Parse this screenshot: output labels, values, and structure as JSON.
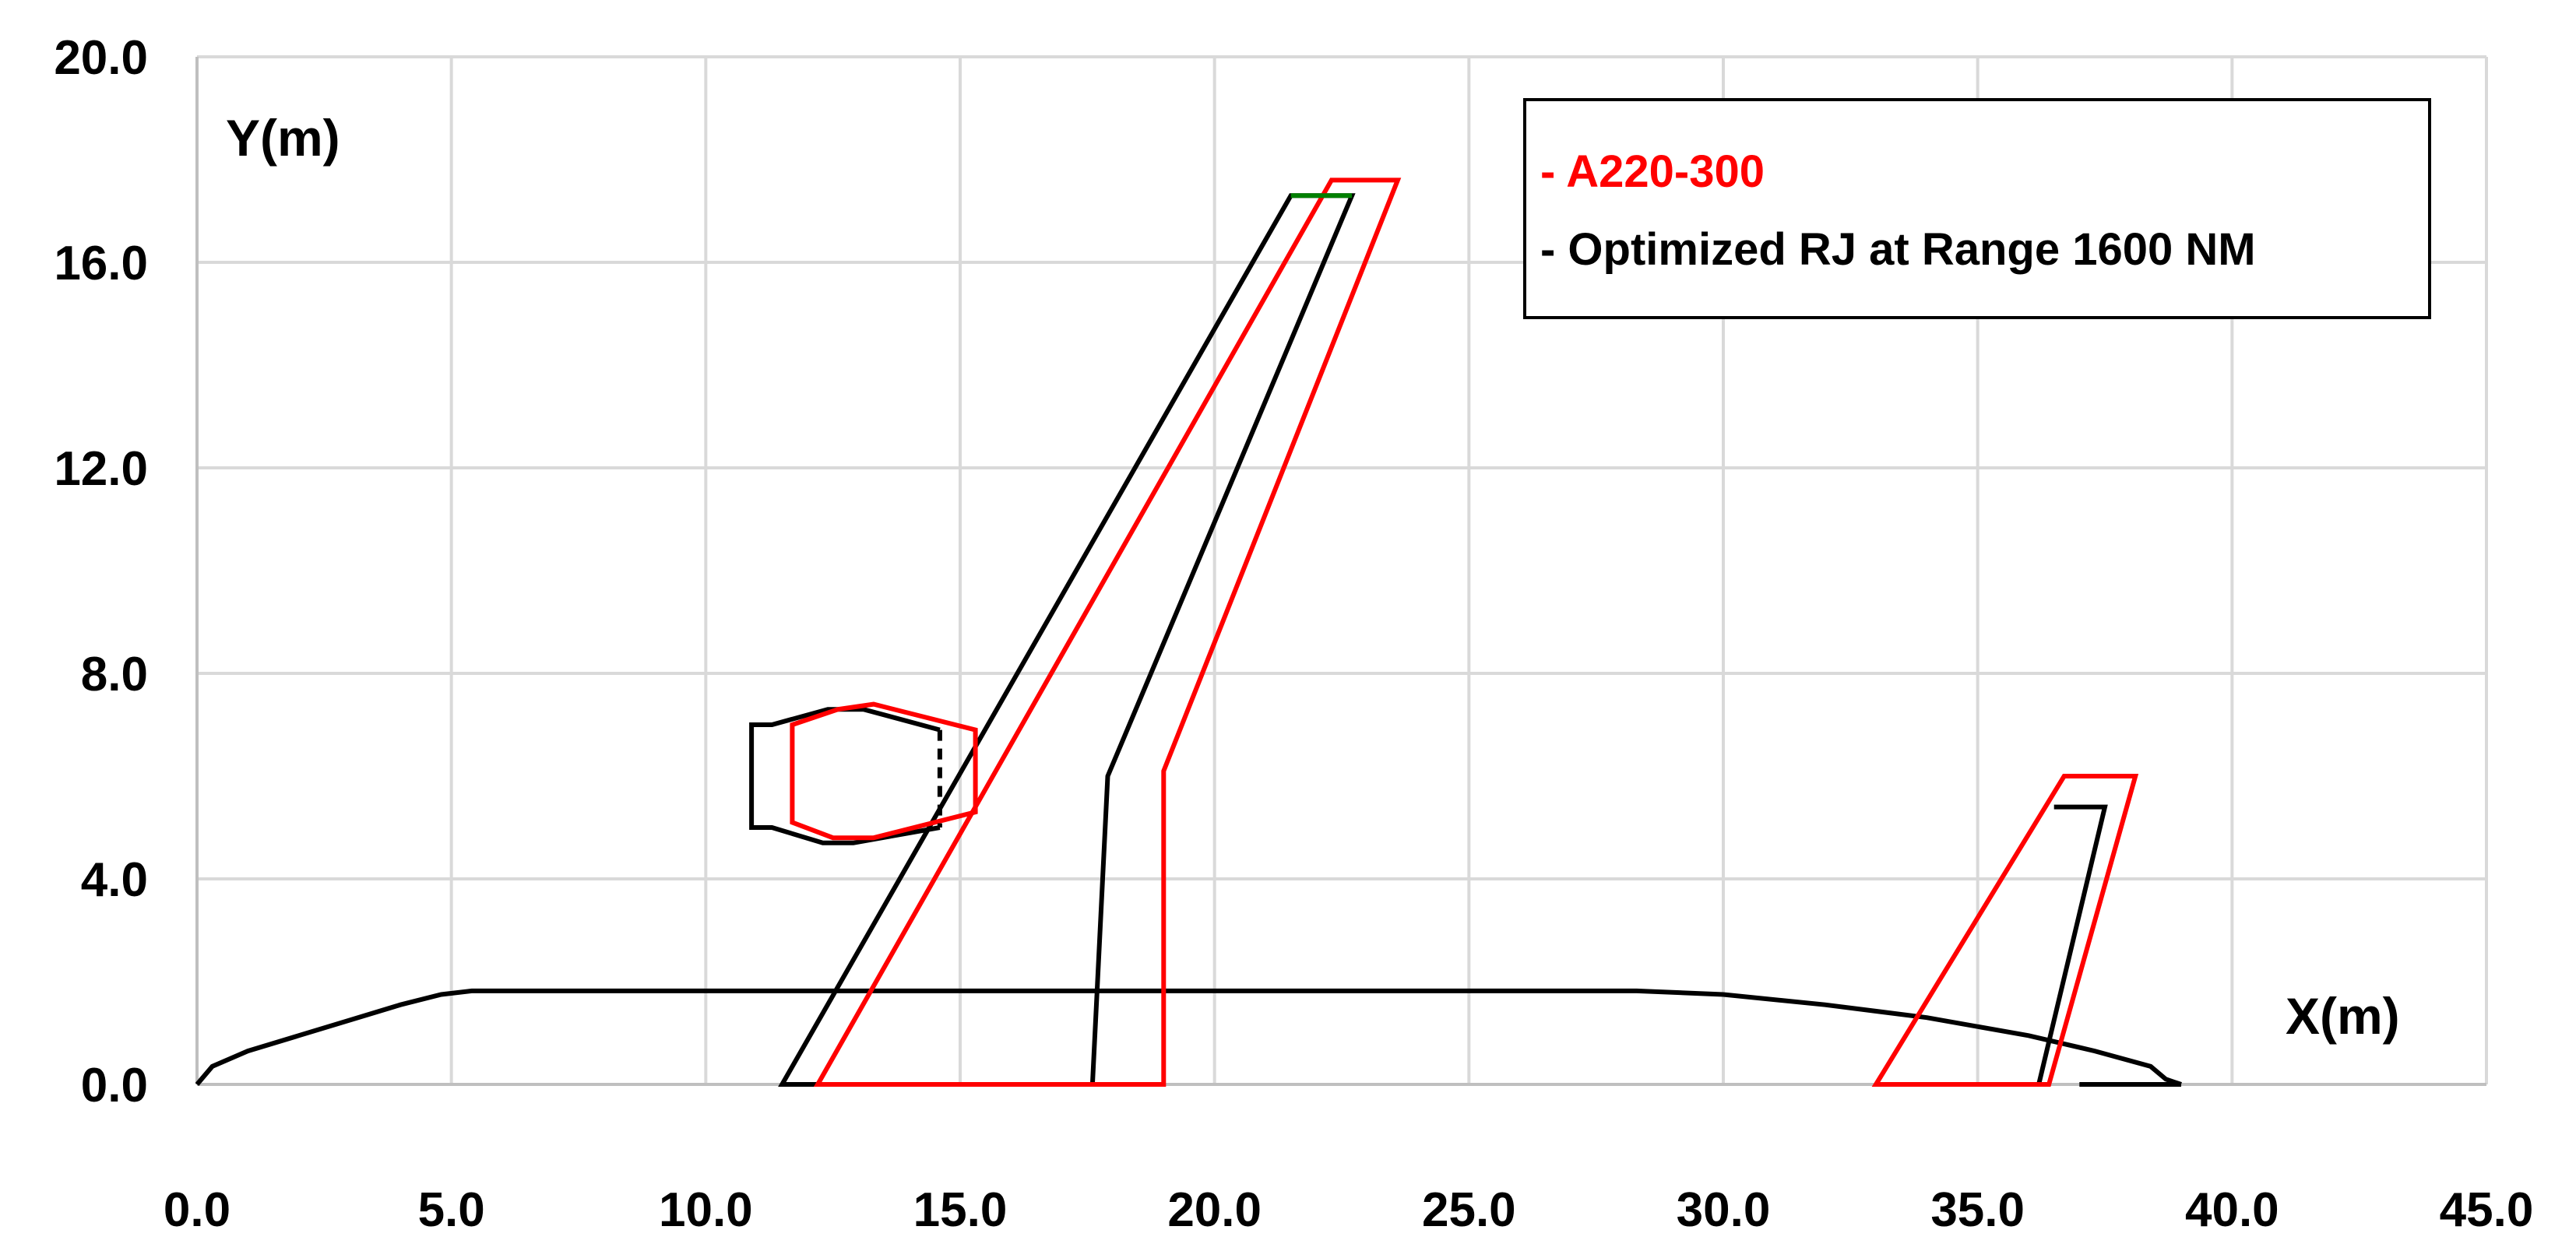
{
  "chart_data": {
    "type": "line",
    "title": "",
    "xlabel": "X(m)",
    "ylabel": "Y(m)",
    "xlim": [
      0,
      45
    ],
    "ylim": [
      0,
      20
    ],
    "x_ticks": [
      0,
      5,
      10,
      15,
      20,
      25,
      30,
      35,
      40,
      45
    ],
    "y_ticks": [
      0,
      4,
      8,
      12,
      16,
      20
    ],
    "x_tick_labels": [
      "0.0",
      "5.0",
      "10.0",
      "15.0",
      "20.0",
      "25.0",
      "30.0",
      "35.0",
      "40.0",
      "45.0"
    ],
    "y_tick_labels": [
      "0.0",
      "4.0",
      "8.0",
      "12.0",
      "16.0",
      "20.0"
    ],
    "grid": true,
    "legend_position": "top-right",
    "legend": [
      {
        "label": "- A220-300",
        "color": "#ff0000"
      },
      {
        "label": "- Optimized RJ at Range 1600 NM",
        "color": "#000000"
      }
    ],
    "series": [
      {
        "name": "fuselage",
        "color": "#000000",
        "closed": false,
        "points": [
          [
            0,
            0
          ],
          [
            0.3,
            0.35
          ],
          [
            1,
            0.65
          ],
          [
            2,
            0.95
          ],
          [
            3,
            1.25
          ],
          [
            4,
            1.55
          ],
          [
            4.8,
            1.75
          ],
          [
            5.4,
            1.82
          ],
          [
            28.3,
            1.82
          ],
          [
            30,
            1.75
          ],
          [
            32,
            1.55
          ],
          [
            34,
            1.3
          ],
          [
            36,
            0.95
          ],
          [
            37.3,
            0.65
          ],
          [
            38.4,
            0.35
          ],
          [
            38.7,
            0.1
          ],
          [
            39,
            0
          ]
        ]
      },
      {
        "name": "tail-base",
        "color": "#000000",
        "closed": false,
        "points": [
          [
            37.0,
            0
          ],
          [
            39.0,
            0
          ]
        ]
      },
      {
        "name": "wing-optimized",
        "color": "#000000",
        "closed": true,
        "points": [
          [
            11.5,
            0
          ],
          [
            21.5,
            17.3
          ],
          [
            22.7,
            17.3
          ],
          [
            17.9,
            6.0
          ],
          [
            17.6,
            0
          ]
        ]
      },
      {
        "name": "wing-a220",
        "color": "#ff0000",
        "closed": true,
        "points": [
          [
            12.2,
            0
          ],
          [
            22.3,
            17.6
          ],
          [
            23.6,
            17.6
          ],
          [
            19.0,
            6.1
          ],
          [
            19.0,
            0
          ]
        ]
      },
      {
        "name": "wing-tip-chord",
        "color": "#008000",
        "closed": false,
        "points": [
          [
            21.5,
            17.3
          ],
          [
            22.7,
            17.3
          ]
        ]
      },
      {
        "name": "nacelle-optimized",
        "color": "#000000",
        "closed": false,
        "points": [
          [
            14.6,
            6.9
          ],
          [
            13.1,
            7.3
          ],
          [
            12.4,
            7.3
          ],
          [
            11.3,
            7.0
          ],
          [
            10.9,
            7.0
          ],
          [
            10.9,
            5.0
          ],
          [
            11.3,
            5.0
          ],
          [
            12.3,
            4.7
          ],
          [
            12.9,
            4.7
          ],
          [
            14.6,
            5.0
          ]
        ]
      },
      {
        "name": "nacelle-a220",
        "color": "#ff0000",
        "closed": true,
        "points": [
          [
            11.7,
            7.0
          ],
          [
            12.6,
            7.3
          ],
          [
            13.3,
            7.4
          ],
          [
            15.3,
            6.9
          ],
          [
            15.3,
            5.3
          ],
          [
            13.3,
            4.8
          ],
          [
            12.5,
            4.8
          ],
          [
            11.7,
            5.1
          ]
        ]
      },
      {
        "name": "htail-optimized",
        "color": "#000000",
        "closed": false,
        "points": [
          [
            36.2,
            0
          ],
          [
            37.5,
            5.4
          ],
          [
            36.5,
            5.4
          ]
        ]
      },
      {
        "name": "htail-a220",
        "color": "#ff0000",
        "closed": true,
        "points": [
          [
            33.0,
            0
          ],
          [
            36.7,
            6.0
          ],
          [
            38.1,
            6.0
          ],
          [
            36.4,
            0
          ]
        ]
      }
    ],
    "dashed_segments": [
      {
        "name": "nacelle-exit-dashed",
        "color": "#000000",
        "points": [
          [
            14.6,
            6.9
          ],
          [
            14.6,
            5.0
          ]
        ]
      }
    ]
  }
}
